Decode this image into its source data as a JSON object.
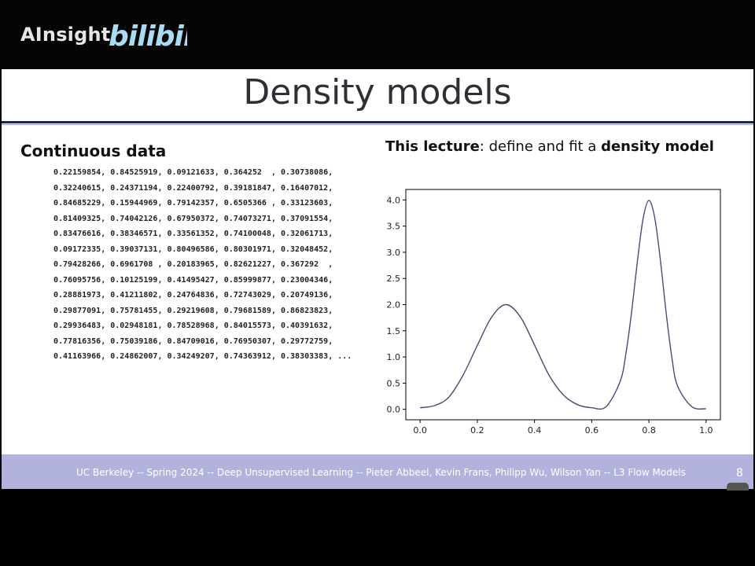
{
  "watermark": {
    "brand": "AInsight",
    "logo_text": "bilibili"
  },
  "slide": {
    "title": "Density models",
    "left_heading": "Continuous data",
    "data_rows": [
      "0.22159854, 0.84525919, 0.09121633, 0.364252  , 0.30738086,",
      "0.32240615, 0.24371194, 0.22400792, 0.39181847, 0.16407012,",
      "0.84685229, 0.15944969, 0.79142357, 0.6505366 , 0.33123603,",
      "0.81409325, 0.74042126, 0.67950372, 0.74073271, 0.37091554,",
      "0.83476616, 0.38346571, 0.33561352, 0.74100048, 0.32061713,",
      "0.09172335, 0.39037131, 0.80496586, 0.80301971, 0.32048452,",
      "0.79428266, 0.6961708 , 0.20183965, 0.82621227, 0.367292  ,",
      "0.76095756, 0.10125199, 0.41495427, 0.85999877, 0.23004346,",
      "0.28881973, 0.41211802, 0.24764836, 0.72743029, 0.20749136,",
      "0.29877091, 0.75781455, 0.29219608, 0.79681589, 0.86823823,",
      "0.29936483, 0.02948181, 0.78528968, 0.84015573, 0.40391632,",
      "0.77816356, 0.75039186, 0.84709016, 0.76950307, 0.29772759,",
      "0.41163966, 0.24862007, 0.34249207, 0.74363912, 0.38303383, ..."
    ],
    "right_heading": {
      "bold1": "This lecture",
      "mid": ": define and fit a ",
      "bold2": "density model"
    }
  },
  "footer": {
    "text": "UC Berkeley -- Spring 2024 -- Deep Unsupervised Learning -- Pieter Abbeel, Kevin Frans, Philipp Wu, Wilson Yan -- L3 Flow Models",
    "page": "8"
  },
  "colors": {
    "line": "#4a4a78",
    "footer_bg": "#b2b3dd",
    "rule": "#1e2450"
  },
  "chart_data": {
    "type": "line",
    "title": "",
    "xlabel": "",
    "ylabel": "",
    "xlim": [
      -0.05,
      1.05
    ],
    "ylim": [
      -0.2,
      4.2
    ],
    "xticks": [
      "0.0",
      "0.2",
      "0.4",
      "0.6",
      "0.8",
      "1.0"
    ],
    "yticks": [
      "0.0",
      "0.5",
      "1.0",
      "1.5",
      "2.0",
      "2.5",
      "3.0",
      "3.5",
      "4.0"
    ],
    "x": [
      0.0,
      0.05,
      0.1,
      0.15,
      0.2,
      0.25,
      0.3,
      0.35,
      0.4,
      0.45,
      0.5,
      0.55,
      0.6,
      0.65,
      0.7,
      0.72,
      0.74,
      0.76,
      0.78,
      0.8,
      0.82,
      0.84,
      0.86,
      0.88,
      0.9,
      0.95,
      1.0
    ],
    "series": [
      {
        "values": [
          0.03,
          0.07,
          0.23,
          0.65,
          1.22,
          1.76,
          2.0,
          1.77,
          1.23,
          0.66,
          0.28,
          0.09,
          0.03,
          0.05,
          0.54,
          1.08,
          1.88,
          2.84,
          3.65,
          3.99,
          3.67,
          2.86,
          1.86,
          1.0,
          0.45,
          0.05,
          0.01
        ]
      }
    ]
  }
}
